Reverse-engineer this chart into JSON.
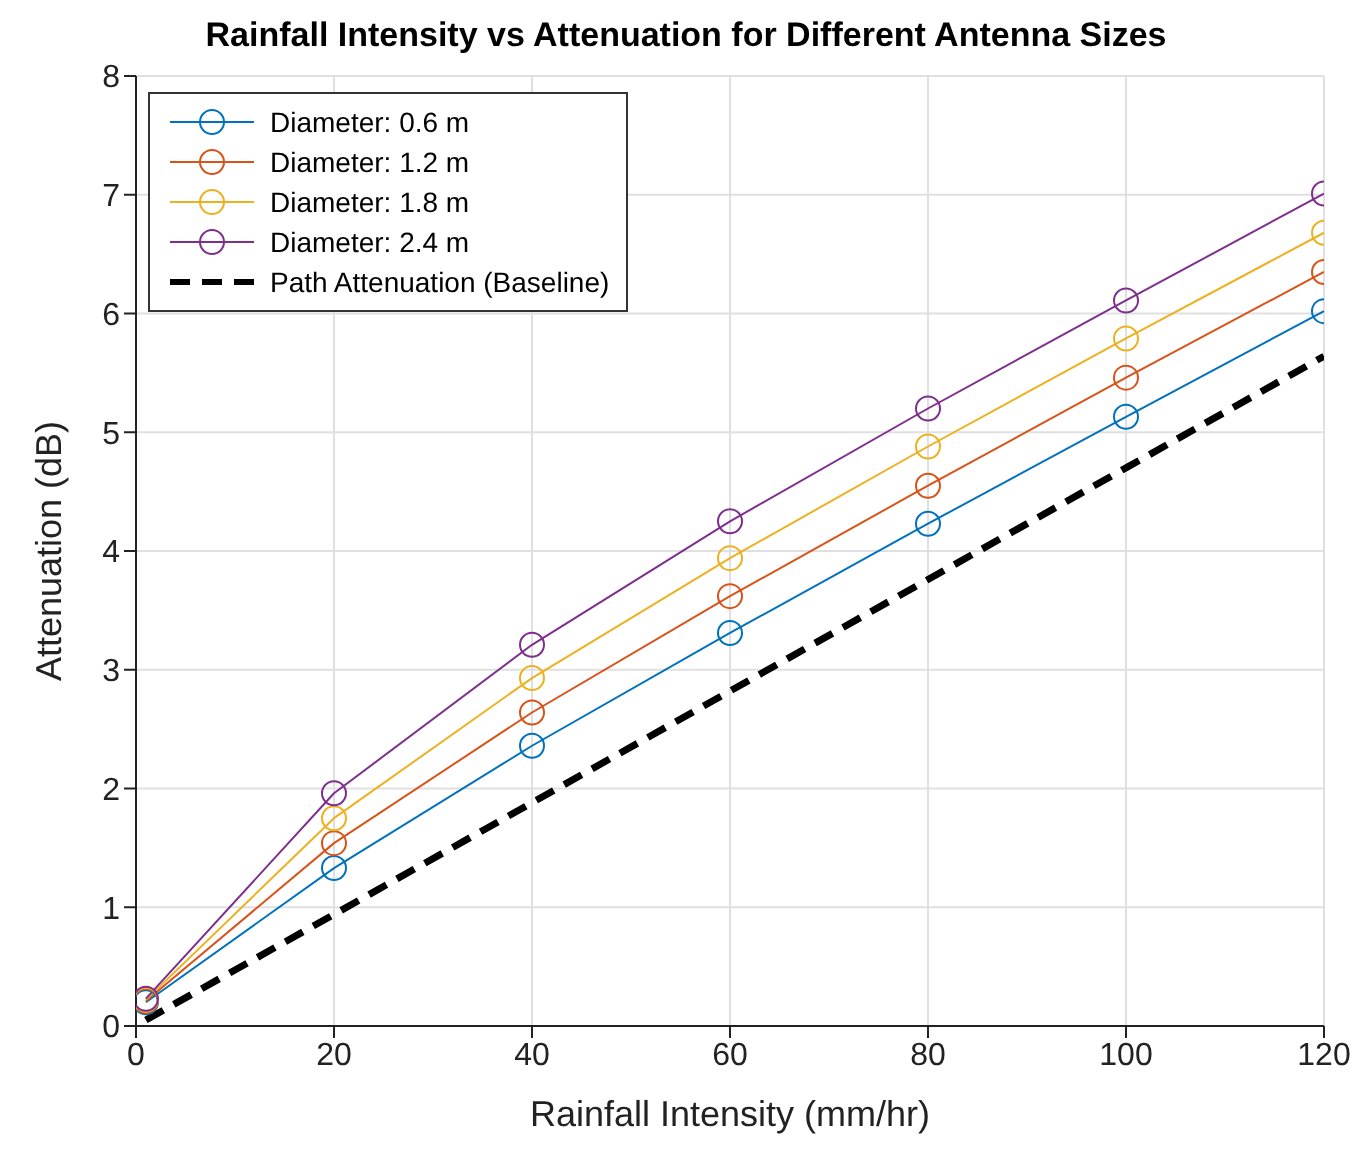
{
  "chart_data": {
    "type": "line",
    "title": "Rainfall Intensity vs Attenuation for Different Antenna Sizes",
    "xlabel": "Rainfall Intensity (mm/hr)",
    "ylabel": "Attenuation (dB)",
    "x": [
      1,
      20,
      40,
      60,
      80,
      100,
      120
    ],
    "series": [
      {
        "name": "Diameter: 0.6 m",
        "color": "#0072bd",
        "marker": "circle",
        "values": [
          0.2,
          1.33,
          2.36,
          3.31,
          4.23,
          5.13,
          6.02
        ]
      },
      {
        "name": "Diameter: 1.2 m",
        "color": "#d95319",
        "marker": "circle",
        "values": [
          0.21,
          1.54,
          2.64,
          3.62,
          4.55,
          5.46,
          6.35
        ]
      },
      {
        "name": "Diameter: 1.8 m",
        "color": "#edb120",
        "marker": "circle",
        "values": [
          0.22,
          1.75,
          2.93,
          3.94,
          4.88,
          5.79,
          6.68
        ]
      },
      {
        "name": "Diameter: 2.4 m",
        "color": "#7e2f8e",
        "marker": "circle",
        "values": [
          0.23,
          1.96,
          3.21,
          4.25,
          5.2,
          6.11,
          7.01
        ]
      },
      {
        "name": "Path Attenuation (Baseline)",
        "color": "#000000",
        "marker": "none",
        "line_style": "dashed",
        "values": [
          0.05,
          0.94,
          1.88,
          2.82,
          3.76,
          4.7,
          5.64
        ]
      }
    ],
    "xlim": [
      0,
      120
    ],
    "xticks": [
      0,
      20,
      40,
      60,
      80,
      100,
      120
    ],
    "ylim": [
      0,
      8
    ],
    "yticks": [
      0,
      1,
      2,
      3,
      4,
      5,
      6,
      7,
      8
    ],
    "grid": true,
    "legend": "top left"
  }
}
